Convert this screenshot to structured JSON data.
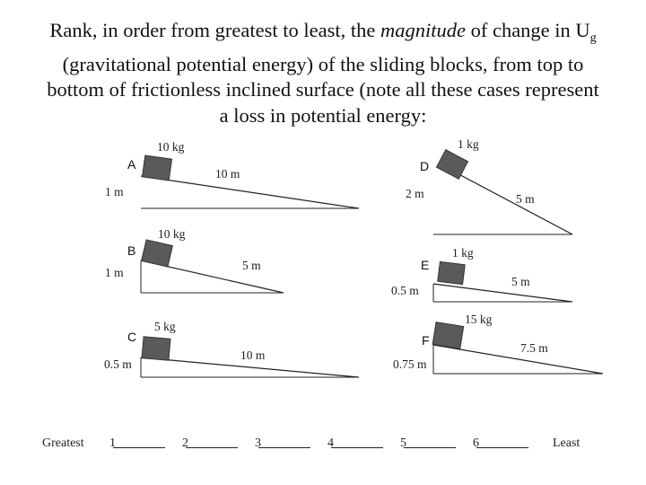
{
  "title": {
    "line1_before": "Rank, in order from greatest to least, the ",
    "line1_em": "magnitude",
    "line1_after": " of change in U",
    "line1_sub": "g",
    "line2": "(gravitational potential energy) of the sliding blocks, from top to",
    "line3": "bottom of frictionless inclined surface (note all these cases represent",
    "line4": "a loss in potential energy:"
  },
  "diagrams": [
    {
      "letter": "A",
      "mass": "10 kg",
      "height": "1 m",
      "length": "10 m"
    },
    {
      "letter": "B",
      "mass": "10 kg",
      "height": "1 m",
      "length": "5 m"
    },
    {
      "letter": "C",
      "mass": "5 kg",
      "height": "0.5 m",
      "length": "10 m"
    },
    {
      "letter": "D",
      "mass": "1 kg",
      "height": "2 m",
      "length": "5 m"
    },
    {
      "letter": "E",
      "mass": "1 kg",
      "height": "0.5 m",
      "length": "5 m"
    },
    {
      "letter": "F",
      "mass": "15 kg",
      "height": "0.75 m",
      "length": "7.5 m"
    }
  ],
  "ranking": {
    "greatest": "Greatest",
    "least": "Least",
    "slots": [
      "1",
      "2",
      "3",
      "4",
      "5",
      "6"
    ]
  },
  "colors": {
    "block": "#5a5a5a",
    "line": "#222222"
  }
}
